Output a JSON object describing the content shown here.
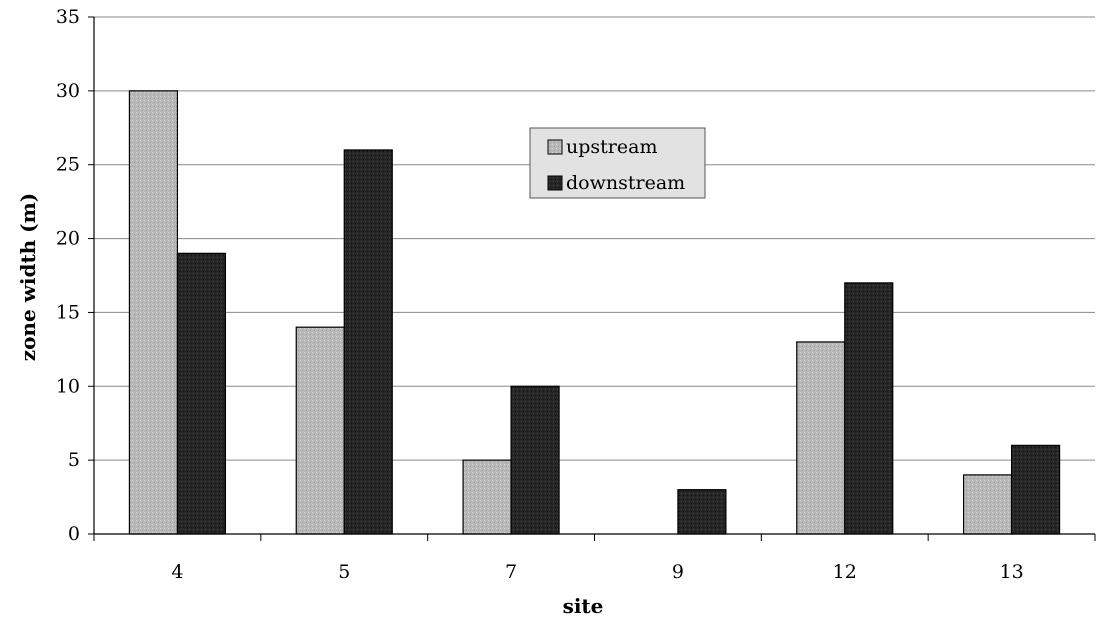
{
  "chart_data": {
    "type": "bar",
    "categories": [
      "4",
      "5",
      "7",
      "9",
      "12",
      "13"
    ],
    "series": [
      {
        "name": "upstream",
        "values": [
          30,
          14,
          5,
          0,
          13,
          4
        ],
        "color": "#b8b8b8"
      },
      {
        "name": "downstream",
        "values": [
          19,
          26,
          10,
          3,
          17,
          6
        ],
        "color": "#262626"
      }
    ],
    "xlabel": "site",
    "ylabel": "zone width (m)",
    "ylim": [
      0,
      35
    ],
    "yticks": [
      "0",
      "5",
      "10",
      "15",
      "20",
      "25",
      "30",
      "35"
    ],
    "grid": true,
    "legend": {
      "position": "top-center",
      "entries": [
        "upstream",
        "downstream"
      ]
    }
  }
}
